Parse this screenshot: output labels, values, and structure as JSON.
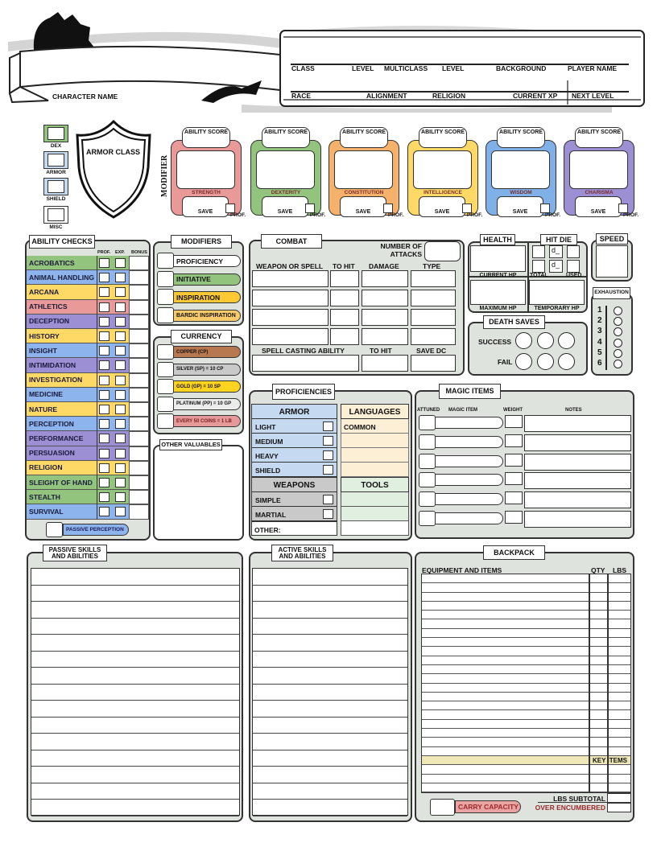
{
  "header": {
    "character_name_label": "CHARACTER NAME",
    "row1": [
      "CLASS",
      "LEVEL",
      "MULTICLASS",
      "LEVEL",
      "BACKGROUND",
      "PLAYER NAME"
    ],
    "row2": [
      "RACE",
      "ALIGNMENT",
      "RELIGION",
      "CURRENT XP",
      "NEXT LEVEL"
    ]
  },
  "armor_class": {
    "title": "ARMOR CLASS",
    "sources": [
      {
        "label": "DEX",
        "color": "#93c47d"
      },
      {
        "label": "ARMOR",
        "color": "#c5d9f1"
      },
      {
        "label": "SHIELD",
        "color": "#c5d9f1"
      },
      {
        "label": "MISC",
        "color": "#ffffff"
      }
    ]
  },
  "abilities": {
    "modifier_label": "MODIFIER",
    "score_label": "ABILITY SCORE",
    "save_label": "SAVE",
    "prof_label": "PROF.",
    "items": [
      {
        "name": "STRENGTH",
        "color": "#ea9999"
      },
      {
        "name": "DEXTERITY",
        "color": "#93c47d"
      },
      {
        "name": "CONSTITUTION",
        "color": "#f6b26b"
      },
      {
        "name": "INTELLIGENCE",
        "color": "#ffd966"
      },
      {
        "name": "WISDOM",
        "color": "#7fb0e8"
      },
      {
        "name": "CHARISMA",
        "color": "#9d8fd4"
      }
    ]
  },
  "ability_checks": {
    "title": "ABILITY CHECKS",
    "columns": [
      "PROF.",
      "EXP.",
      "BONUS"
    ],
    "skills": [
      {
        "name": "ACROBATICS",
        "color": "#93c47d"
      },
      {
        "name": "ANIMAL HANDLING",
        "color": "#8db4ec"
      },
      {
        "name": "ARCANA",
        "color": "#ffd966"
      },
      {
        "name": "ATHLETICS",
        "color": "#ea9999"
      },
      {
        "name": "DECEPTION",
        "color": "#9d8fd4"
      },
      {
        "name": "HISTORY",
        "color": "#ffd966"
      },
      {
        "name": "INSIGHT",
        "color": "#8db4ec"
      },
      {
        "name": "INTIMIDATION",
        "color": "#9d8fd4"
      },
      {
        "name": "INVESTIGATION",
        "color": "#ffd966"
      },
      {
        "name": "MEDICINE",
        "color": "#8db4ec"
      },
      {
        "name": "NATURE",
        "color": "#ffd966"
      },
      {
        "name": "PERCEPTION",
        "color": "#8db4ec"
      },
      {
        "name": "PERFORMANCE",
        "color": "#9d8fd4"
      },
      {
        "name": "PERSUASION",
        "color": "#9d8fd4"
      },
      {
        "name": "RELIGION",
        "color": "#ffd966"
      },
      {
        "name": "SLEIGHT OF HAND",
        "color": "#93c47d"
      },
      {
        "name": "STEALTH",
        "color": "#93c47d"
      },
      {
        "name": "SURVIVAL",
        "color": "#8db4ec"
      }
    ],
    "passive_perception": {
      "label": "PASSIVE PERCEPTION",
      "color": "#8db4ec"
    }
  },
  "modifiers": {
    "title": "MODIFIERS",
    "items": [
      {
        "label": "PROFICIENCY",
        "color": "#ffffff"
      },
      {
        "label": "INITIATIVE",
        "color": "#93c47d"
      },
      {
        "label": "INSPIRATION",
        "color": "#fcc833"
      },
      {
        "label": "BARDIC INSPIRATION",
        "color": "#f9cb6b"
      }
    ]
  },
  "currency": {
    "title": "CURRENCY",
    "items": [
      {
        "label": "COPPER (CP)",
        "color": "#b7774f"
      },
      {
        "label": "SILVER (SP) = 10 CP",
        "color": "#c9c9c9"
      },
      {
        "label": "GOLD (GP) = 10 SP",
        "color": "#ffd320"
      },
      {
        "label": "PLATINUM (PP) = 10 GP",
        "color": "#ececec"
      },
      {
        "label": "EVERY 50 COINS = 1 LB",
        "color": "#e59999"
      }
    ]
  },
  "other_valuables": {
    "title": "OTHER VALUABLES"
  },
  "combat": {
    "title": "COMBAT",
    "attacks_label_1": "NUMBER OF",
    "attacks_label_2": "ATTACKS",
    "columns": [
      "WEAPON OR SPELL",
      "TO HIT",
      "DAMAGE",
      "TYPE"
    ],
    "spell_columns": [
      "SPELL CASTING ABILITY",
      "TO HIT",
      "SAVE DC"
    ]
  },
  "health": {
    "title": "HEALTH",
    "current_hp": "CURRENT HP",
    "maximum_hp": "MAXIMUM HP",
    "temporary_hp": "TEMPORARY HP"
  },
  "hit_die": {
    "title": "HIT DIE",
    "die_placeholder": "d_",
    "total": "TOTAL",
    "used": "USED"
  },
  "speed": {
    "title": "SPEED"
  },
  "exhaustion": {
    "title": "EXHAUSTION",
    "levels": [
      "1",
      "2",
      "3",
      "4",
      "5",
      "6"
    ]
  },
  "death_saves": {
    "title": "DEATH SAVES",
    "success": "SUCCESS",
    "fail": "FAIL"
  },
  "proficiencies": {
    "title": "PROFICIENCIES",
    "armor_header": "ARMOR",
    "armor": [
      "LIGHT",
      "MEDIUM",
      "HEAVY",
      "SHIELD"
    ],
    "weapons_header": "WEAPONS",
    "weapons": [
      "SIMPLE",
      "MARTIAL"
    ],
    "other": "OTHER:",
    "languages_header": "LANGUAGES",
    "languages": [
      "COMMON"
    ],
    "tools_header": "TOOLS",
    "colors": {
      "armor": "#c5d9f1",
      "weapons": "#c9c9c9",
      "languages": "#fdefd6",
      "tools": "#e0efe0"
    }
  },
  "magic_items": {
    "title": "MAGIC ITEMS",
    "columns": [
      "ATTUNED",
      "MAGIC ITEM",
      "WEIGHT",
      "NOTES"
    ]
  },
  "passive_skills": {
    "title_1": "PASSIVE SKILLS",
    "title_2": "AND ABILITIES"
  },
  "active_skills": {
    "title_1": "ACTIVE SKILLS",
    "title_2": "AND ABILITIES"
  },
  "backpack": {
    "title": "BACKPACK",
    "columns": [
      "EQUIPMENT AND ITEMS",
      "QTY",
      "LBS"
    ],
    "key_items": "KEY ITEMS",
    "key_items_color": "#efe7b8",
    "lbs_subtotal": "LBS SUBTOTAL",
    "over_encumbered": "OVER ENCUMBERED",
    "carry_capacity": "CARRY CAPACITY",
    "carry_color": "#eaa3a3",
    "warn_color": "#9a2a2a"
  },
  "panel_color": "#dfe3de"
}
